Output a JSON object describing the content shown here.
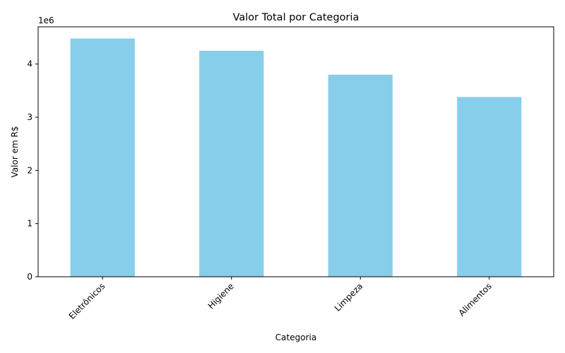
{
  "chart_data": {
    "type": "bar",
    "title": "Valor Total por Categoria",
    "xlabel": "Categoria",
    "ylabel": "Valor em R$",
    "y_offset_label": "1e6",
    "categories": [
      "Eletrônicos",
      "Higiene",
      "Limpeza",
      "Alimentos"
    ],
    "values": [
      4480000,
      4250000,
      3800000,
      3380000
    ],
    "ylim": [
      0,
      4700000
    ],
    "yticks": [
      0,
      1000000,
      2000000,
      3000000,
      4000000
    ],
    "ytick_labels": [
      "0",
      "1",
      "2",
      "3",
      "4"
    ],
    "bar_color": "#87ceeb",
    "grid": false,
    "legend": "none"
  }
}
